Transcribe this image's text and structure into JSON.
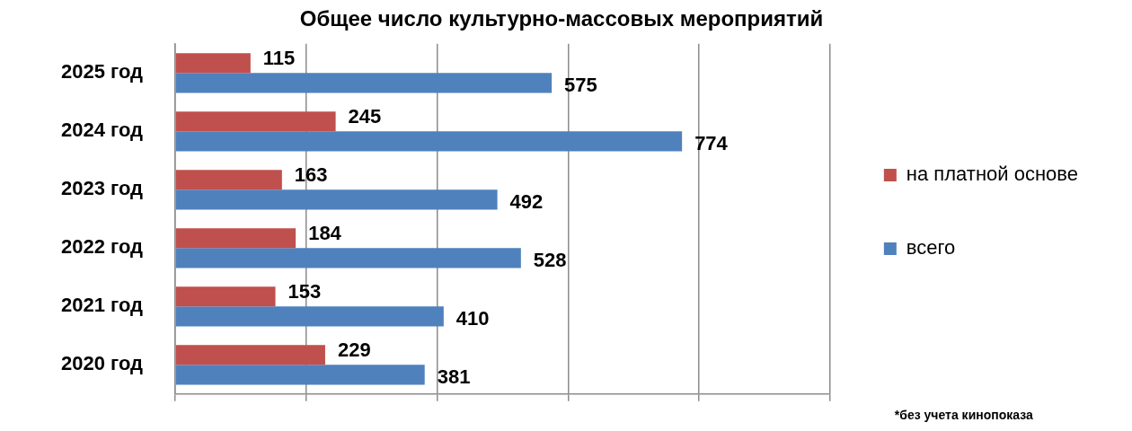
{
  "chart_data": {
    "type": "bar",
    "orientation": "horizontal",
    "title": "Общее число культурно-массовых мероприятий",
    "categories": [
      "2025 год",
      "2024 год",
      "2023 год",
      "2022 год",
      "2021 год",
      "2020 год"
    ],
    "series": [
      {
        "name": "на платной основе",
        "color": "#c0504d",
        "values": [
          115,
          245,
          163,
          184,
          153,
          229
        ]
      },
      {
        "name": "всего",
        "color": "#4f81bd",
        "values": [
          575,
          774,
          492,
          528,
          410,
          381
        ]
      }
    ],
    "xlim": [
      0,
      1000
    ],
    "xticks": [
      0,
      200,
      400,
      600,
      800,
      1000
    ],
    "tick_labels": "y",
    "grid": "x",
    "legend": "right",
    "data_labels": true,
    "annotations": [
      "*без учета кинопоказа"
    ]
  }
}
